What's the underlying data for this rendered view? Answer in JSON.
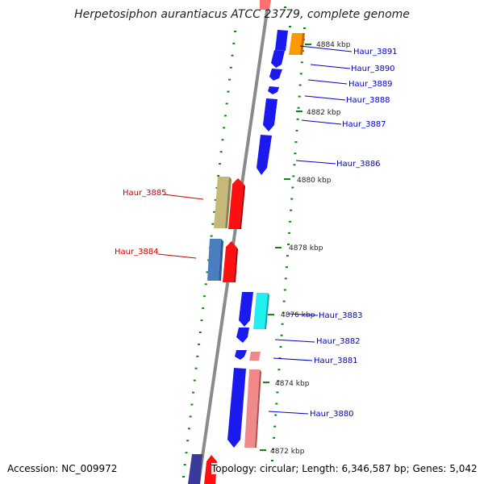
{
  "title": "Herpetosiphon aurantiacus ATCC 23779, complete genome",
  "accession": "Accession: NC_009972",
  "summary": "Topology: circular; Length: 6,346,587 bp; Genes: 5,042",
  "colors": {
    "forward_cds": "#0000ff",
    "reverse_cds": "#ff0000",
    "label_forward": "#0000cc",
    "label_reverse": "#cc0000",
    "tick": "#118811",
    "backbone": "#888888"
  },
  "kbp_ticks": [
    "4884 kbp",
    "4882 kbp",
    "4880 kbp",
    "4878 kbp",
    "4876 kbp",
    "4874 kbp",
    "4872 kbp"
  ],
  "gene_labels": [
    {
      "name": "Haur_3891",
      "strand": "forward"
    },
    {
      "name": "Haur_3890",
      "strand": "forward"
    },
    {
      "name": "Haur_3889",
      "strand": "forward"
    },
    {
      "name": "Haur_3888",
      "strand": "forward"
    },
    {
      "name": "Haur_3887",
      "strand": "forward"
    },
    {
      "name": "Haur_3886",
      "strand": "forward"
    },
    {
      "name": "Haur_3885",
      "strand": "reverse"
    },
    {
      "name": "Haur_3884",
      "strand": "reverse"
    },
    {
      "name": "Haur_3883",
      "strand": "forward"
    },
    {
      "name": "Haur_3882",
      "strand": "forward"
    },
    {
      "name": "Haur_3881",
      "strand": "forward"
    },
    {
      "name": "Haur_3880",
      "strand": "forward"
    }
  ]
}
